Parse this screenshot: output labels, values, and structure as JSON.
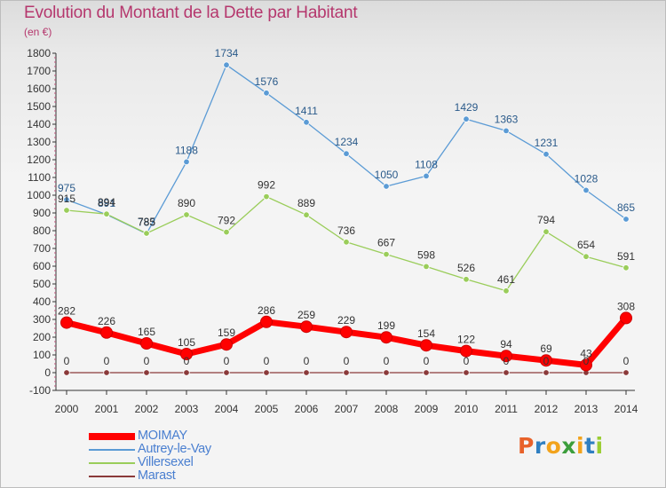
{
  "title": "Evolution du Montant de la Dette par Habitant",
  "unit_label": "(en €)",
  "brand": {
    "letters": [
      "P",
      "r",
      "o",
      "x",
      "i",
      "t",
      "i"
    ],
    "colors": [
      "#e8622a",
      "#2f7fc1",
      "#f2a31c",
      "#3c9e3c",
      "#f2a31c",
      "#2f7fc1",
      "#9acd32"
    ]
  },
  "colors": {
    "title": "#b5376d",
    "axis": "#333333",
    "grid_tick": "#b5376d"
  },
  "chart_data": {
    "type": "line",
    "x": [
      2000,
      2001,
      2002,
      2003,
      2004,
      2005,
      2006,
      2007,
      2008,
      2009,
      2010,
      2011,
      2012,
      2013,
      2014
    ],
    "ylim": [
      -100,
      1800
    ],
    "yticks": [
      -100,
      0,
      100,
      200,
      300,
      400,
      500,
      600,
      700,
      800,
      900,
      1000,
      1100,
      1200,
      1300,
      1400,
      1500,
      1600,
      1700,
      1800
    ],
    "series": [
      {
        "name": "MOIMAY",
        "color": "#ff0000",
        "label_color": "#333333",
        "values": [
          282,
          226,
          165,
          105,
          159,
          286,
          259,
          229,
          199,
          154,
          122,
          94,
          69,
          43,
          308
        ]
      },
      {
        "name": "Autrey-le-Vay",
        "color": "#5b9bd5",
        "label_color": "#2a5a8a",
        "values": [
          975,
          891,
          783,
          1188,
          1734,
          1576,
          1411,
          1234,
          1050,
          1108,
          1429,
          1363,
          1231,
          1028,
          865
        ]
      },
      {
        "name": "Villersexel",
        "color": "#9acd5a",
        "label_color": "#333333",
        "values": [
          915,
          894,
          785,
          890,
          792,
          992,
          889,
          736,
          667,
          598,
          526,
          461,
          794,
          654,
          591
        ]
      },
      {
        "name": "Marast",
        "color": "#8b3a3a",
        "label_color": "#333333",
        "values": [
          0,
          0,
          0,
          0,
          0,
          0,
          0,
          0,
          0,
          0,
          0,
          0,
          0,
          0,
          0
        ]
      }
    ]
  }
}
